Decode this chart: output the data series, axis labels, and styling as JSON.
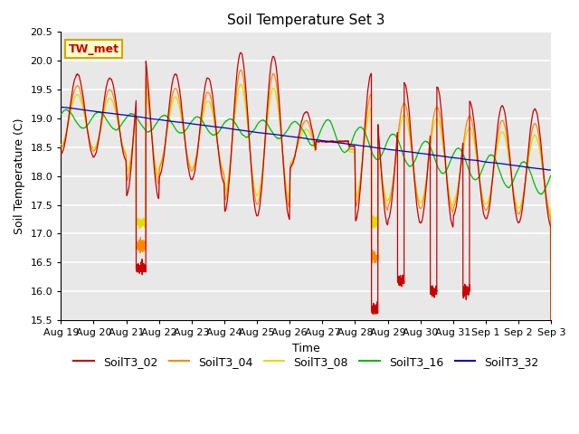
{
  "title": "Soil Temperature Set 3",
  "xlabel": "Time",
  "ylabel": "Soil Temperature (C)",
  "ylim": [
    15.5,
    20.5
  ],
  "annotation_text": "TW_met",
  "annotation_color": "#cc0000",
  "annotation_box_color": "#ffffcc",
  "annotation_box_edge": "#ccaa00",
  "bg_color": "#e8e8e8",
  "series_colors": {
    "SoilT3_02": "#cc0000",
    "SoilT3_04": "#ff8800",
    "SoilT3_08": "#dddd00",
    "SoilT3_16": "#00bb00",
    "SoilT3_32": "#0000cc"
  },
  "xtick_labels": [
    "Aug 19",
    "Aug 20",
    "Aug 21",
    "Aug 22",
    "Aug 23",
    "Aug 24",
    "Aug 25",
    "Aug 26",
    "Aug 27",
    "Aug 28",
    "Aug 29",
    "Aug 30",
    "Aug 31",
    "Sep 1",
    "Sep 2",
    "Sep 3"
  ],
  "n_points": 4320,
  "total_days": 15
}
